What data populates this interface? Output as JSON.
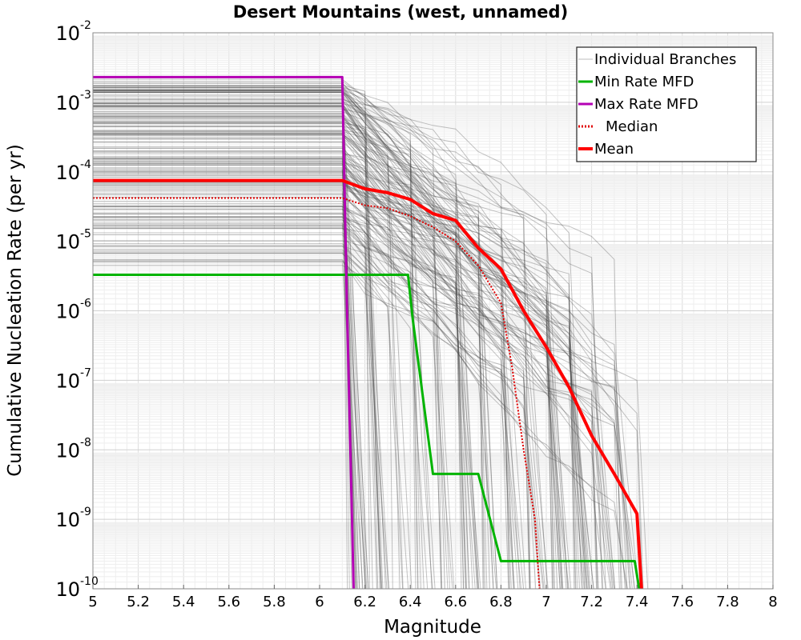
{
  "chart_data": {
    "type": "line",
    "title": "Desert Mountains (west, unnamed)",
    "xlabel": "Magnitude",
    "ylabel": "Cumulative Nucleation Rate (per yr)",
    "xlim": [
      5.0,
      8.0
    ],
    "ylim": [
      1e-10,
      0.01
    ],
    "yscale": "log",
    "grid": true,
    "legend_position": "top-right",
    "x_ticks": [
      "5",
      "5.2",
      "5.4",
      "5.6",
      "5.8",
      "6",
      "6.2",
      "6.4",
      "6.6",
      "6.8",
      "7",
      "7.2",
      "7.4",
      "7.6",
      "7.8",
      "8"
    ],
    "y_ticks": [
      {
        "base": "10",
        "exp": "-10"
      },
      {
        "base": "10",
        "exp": "-9"
      },
      {
        "base": "10",
        "exp": "-8"
      },
      {
        "base": "10",
        "exp": "-7"
      },
      {
        "base": "10",
        "exp": "-6"
      },
      {
        "base": "10",
        "exp": "-5"
      },
      {
        "base": "10",
        "exp": "-4"
      },
      {
        "base": "10",
        "exp": "-3"
      },
      {
        "base": "10",
        "exp": "-2"
      }
    ],
    "legend": [
      {
        "label": "Individual Branches",
        "color": "#bdbdbd",
        "style": "solid"
      },
      {
        "label": "Min Rate MFD",
        "color": "#00b400",
        "style": "solid"
      },
      {
        "label": "Max Rate MFD",
        "color": "#b400b4",
        "style": "solid"
      },
      {
        "label": "Median",
        "color": "#e00000",
        "style": "dotted"
      },
      {
        "label": "Mean",
        "color": "#ff0000",
        "style": "solid"
      }
    ],
    "series": [
      {
        "name": "Min Rate MFD",
        "color": "#00b400",
        "x": [
          5.0,
          6.1,
          6.2,
          6.3,
          6.39,
          6.41,
          6.5,
          6.6,
          6.7,
          6.8,
          6.9,
          7.0,
          7.1,
          7.2,
          7.3,
          7.39,
          7.41
        ],
        "y": [
          3.3e-06,
          3.3e-06,
          3.3e-06,
          3.3e-06,
          3.3e-06,
          8e-07,
          4.5e-09,
          4.5e-09,
          4.5e-09,
          2.5e-10,
          2.5e-10,
          2.5e-10,
          2.5e-10,
          2.5e-10,
          2.5e-10,
          2.5e-10,
          1e-10
        ]
      },
      {
        "name": "Max Rate MFD",
        "color": "#b400b4",
        "x": [
          5.0,
          6.1,
          6.12,
          6.15
        ],
        "y": [
          0.0023,
          0.0023,
          1.4e-06,
          1e-10
        ]
      },
      {
        "name": "Median",
        "color": "#e00000",
        "x": [
          5.0,
          6.1,
          6.2,
          6.3,
          6.4,
          6.5,
          6.6,
          6.7,
          6.8,
          6.85,
          6.9,
          6.95,
          6.97
        ],
        "y": [
          4.2e-05,
          4.2e-05,
          3.3e-05,
          3e-05,
          2.3e-05,
          1.6e-05,
          1e-05,
          4.5e-06,
          1.3e-06,
          1.5e-07,
          1e-08,
          1e-09,
          1e-10
        ]
      },
      {
        "name": "Mean",
        "color": "#ff0000",
        "x": [
          5.0,
          6.1,
          6.2,
          6.3,
          6.4,
          6.5,
          6.6,
          6.7,
          6.8,
          6.9,
          7.0,
          7.1,
          7.2,
          7.3,
          7.4,
          7.42
        ],
        "y": [
          7.5e-05,
          7.5e-05,
          5.7e-05,
          5e-05,
          4e-05,
          2.5e-05,
          2e-05,
          8e-06,
          4e-06,
          1e-06,
          3e-07,
          8e-08,
          1.6e-08,
          4.5e-09,
          1.2e-09,
          1e-10
        ]
      }
    ],
    "branches": {
      "count": 170,
      "seed": 7,
      "rate_range": [
        4.5e-06,
        0.0022
      ],
      "mmin": 6.1,
      "cutoff_range": [
        6.1,
        7.45
      ],
      "color": "#4a4a4a"
    }
  }
}
